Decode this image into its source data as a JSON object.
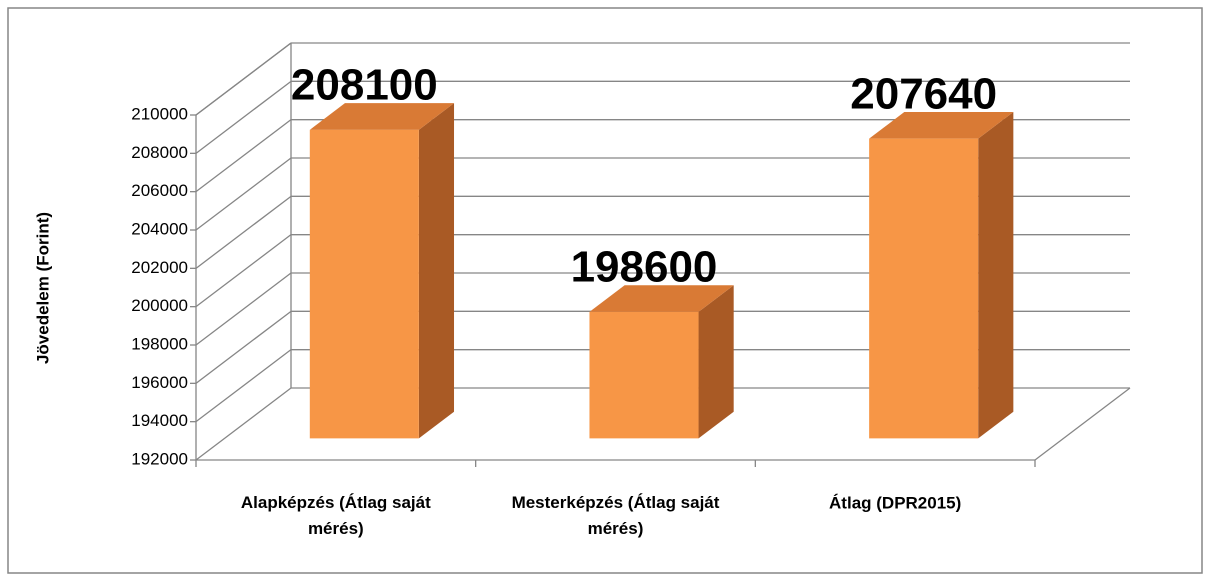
{
  "chart_data": {
    "type": "bar3d",
    "y_axis_label": "Jövedelem (Forint)",
    "categories": [
      "Alapképzés (Átlag saját mérés)",
      "Mesterképzés (Átlag saját mérés)",
      "Átlag (DPR2015)"
    ],
    "values": [
      208100,
      198600,
      207640
    ],
    "color": "#f79646",
    "ylim": [
      192000,
      210000
    ],
    "yticks": [
      192000,
      194000,
      196000,
      198000,
      200000,
      202000,
      204000,
      206000,
      208000,
      210000
    ],
    "grid": true
  }
}
